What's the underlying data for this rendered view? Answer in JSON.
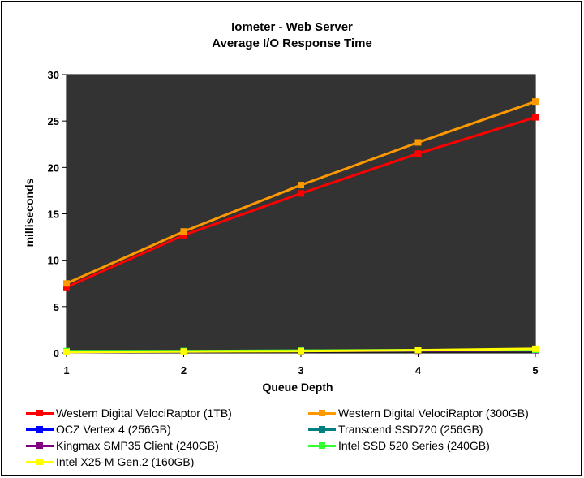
{
  "chart_data": {
    "type": "line",
    "title": "Iometer - Web Server",
    "subtitle": "Average I/O Response Time",
    "xlabel": "Queue Depth",
    "ylabel": "milliseconds",
    "x": [
      1,
      2,
      3,
      4,
      5
    ],
    "ylim": [
      0,
      30
    ],
    "yticks": [
      0,
      5,
      10,
      15,
      20,
      25,
      30
    ],
    "plot_background": "#333333",
    "grid": false,
    "legend_position": "bottom",
    "series": [
      {
        "name": "Western Digital VelociRaptor (1TB)",
        "color": "#ff0000",
        "values": [
          7.1,
          12.7,
          17.2,
          21.5,
          25.4
        ]
      },
      {
        "name": "Western Digital VelociRaptor (300GB)",
        "color": "#ff9900",
        "values": [
          7.5,
          13.1,
          18.1,
          22.7,
          27.1
        ]
      },
      {
        "name": "OCZ Vertex 4 (256GB)",
        "color": "#0000ff",
        "values": [
          0.1,
          0.15,
          0.2,
          0.25,
          0.3
        ]
      },
      {
        "name": "Transcend SSD720 (256GB)",
        "color": "#008080",
        "values": [
          0.15,
          0.2,
          0.25,
          0.3,
          0.35
        ]
      },
      {
        "name": "Kingmax SMP35 Client (240GB)",
        "color": "#800080",
        "values": [
          0.1,
          0.15,
          0.2,
          0.25,
          0.3
        ]
      },
      {
        "name": "Intel SSD 520 Series (240GB)",
        "color": "#33ff33",
        "values": [
          0.2,
          0.2,
          0.25,
          0.3,
          0.35
        ]
      },
      {
        "name": "Intel X25-M Gen.2 (160GB)",
        "color": "#ffff00",
        "values": [
          0.1,
          0.15,
          0.2,
          0.3,
          0.45
        ]
      }
    ]
  }
}
